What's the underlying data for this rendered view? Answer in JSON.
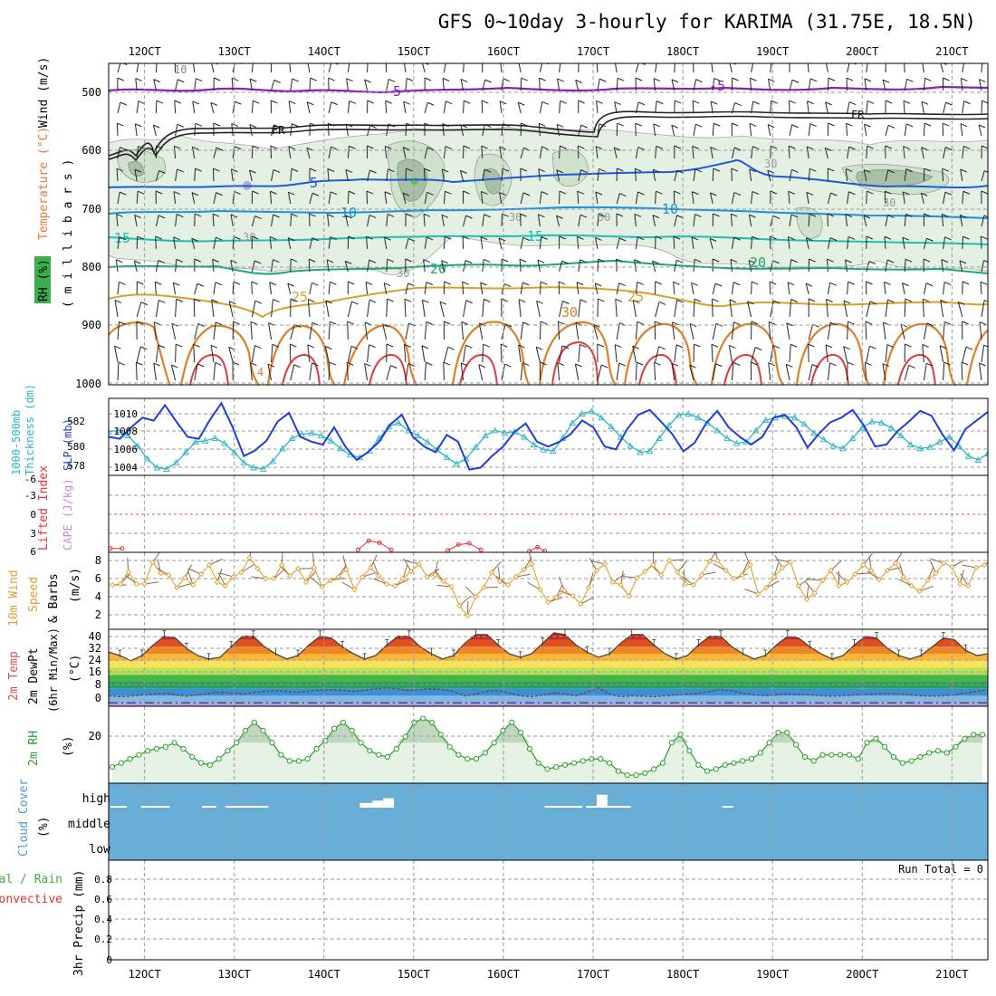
{
  "title": "GFS 0~10day 3-hourly for KARIMA (31.75E, 18.5N)",
  "colors": {
    "slp": "#1e3fd6",
    "thickness": "#2ab7c2",
    "lifted": "#e83030",
    "cape": "#c58ad6",
    "wind10m": "#e0a030",
    "barb": "#8a6a4a",
    "rh2m_line": "#2aa02a",
    "rh2m_fill": "#e6f2e4",
    "cloud_bg": "#69aed6",
    "cloud_fill": "#ffffff",
    "precip_total": "#3cb043",
    "precip_conv": "#e83030"
  },
  "panels": {
    "upper_air": {
      "axis_labels": [
        "RH (%)",
        "Temperature (°C)",
        "Wind (m/s)",
        "( m i l l i b a r s )"
      ],
      "pressure_ticks": [
        "500",
        "600",
        "700",
        "800",
        "900",
        "1000"
      ],
      "contour_labels": [
        "10",
        "5",
        "-5",
        "FR",
        "FR",
        "5",
        "10",
        "10",
        "15",
        "15",
        "20",
        "20",
        "25",
        "25",
        "30",
        "30",
        "30",
        "30",
        "30",
        "4",
        "30",
        "30"
      ]
    },
    "slp": {
      "axis_labels": [
        "1000-500mb",
        "Thickness (dm)",
        "SLP (mb)"
      ],
      "thickness_ticks": [
        "582",
        "580",
        "578"
      ],
      "slp_ticks": [
        "1010",
        "1008",
        "1006",
        "1004"
      ]
    },
    "stability": {
      "axis_labels": [
        "Lifted Index",
        "CAPE (J/kg)"
      ],
      "li_ticks": [
        "-6",
        "-3",
        "0",
        "3",
        "6"
      ]
    },
    "wind10m": {
      "axis_labels": [
        "10m Wind",
        "Speed",
        "& Barbs",
        "(m/s)"
      ],
      "ticks": [
        "8",
        "6",
        "4",
        "2"
      ]
    },
    "temp2m": {
      "axis_labels": [
        "2m Temp",
        "2m DewPt",
        "(6hr Min/Max)",
        "(°C)"
      ],
      "ticks": [
        "40",
        "32",
        "24",
        "16",
        "8",
        "0"
      ]
    },
    "rh2m": {
      "axis_labels": [
        "2m RH",
        "(%)"
      ],
      "ticks": [
        "20"
      ]
    },
    "cloud": {
      "axis_labels": [
        "Cloud Cover",
        "(%)"
      ],
      "levels": [
        "high",
        "middle",
        "low"
      ]
    },
    "precip": {
      "axis_labels": [
        "Total / Rain",
        "Convective",
        "3hr Precip (mm)"
      ],
      "ticks": [
        "0.8",
        "0.6",
        "0.4",
        "0.2",
        "0"
      ],
      "run_total": "Run Total = 0"
    }
  },
  "chart_data": {
    "type": "line",
    "date_labels": [
      "12OCT",
      "13OCT",
      "14OCT",
      "15OCT",
      "16OCT",
      "17OCT",
      "18OCT",
      "19OCT",
      "20OCT",
      "21OCT"
    ],
    "x_range_days": [
      11.6,
      21.4
    ],
    "slp": {
      "ylim": [
        1003,
        1011
      ],
      "values": [
        1007,
        1006.8,
        1008,
        1009,
        1008.7,
        1010.3,
        1008.6,
        1007,
        1006.8,
        1008.8,
        1010.5,
        1008,
        1005,
        1005.6,
        1006.6,
        1008.6,
        1009.5,
        1007,
        1006.5,
        1006.2,
        1008,
        1006,
        1004.6,
        1005.4,
        1006.5,
        1008.3,
        1009.3,
        1007,
        1006,
        1005.4,
        1007.2,
        1006.5,
        1003.6,
        1003.8,
        1005,
        1006,
        1007.5,
        1008.4,
        1006.5,
        1006,
        1006.5,
        1007.3,
        1008.7,
        1008,
        1006,
        1005.7,
        1007.8,
        1009.3,
        1009.8,
        1008.6,
        1007.3,
        1005.5,
        1006.4,
        1008.4,
        1009.7,
        1008,
        1007,
        1006.2,
        1007,
        1009,
        1009.3,
        1008,
        1005.9,
        1007.3,
        1008.5,
        1009,
        1009.8,
        1008.2,
        1006,
        1006.2,
        1007.6,
        1008.6,
        1009.7,
        1009.2,
        1007.2,
        1005.6,
        1007.8,
        1008.7,
        1009.6
      ]
    },
    "thickness": {
      "ylim": [
        577.5,
        583.5
      ],
      "values": [
        580.9,
        581.0,
        580.6,
        579.8,
        578.8,
        578.1,
        578.0,
        578.5,
        579.3,
        580.1,
        580.2,
        580.4,
        580.0,
        579.3,
        578.5,
        578.1,
        578.0,
        578.6,
        579.6,
        580.4,
        580.7,
        580.8,
        580.6,
        580.2,
        579.6,
        579.1,
        578.9,
        579.4,
        580.4,
        581.3,
        581.6,
        581.0,
        580.6,
        580.1,
        579.5,
        578.9,
        578.4,
        578.8,
        579.7,
        580.6,
        581.0,
        580.8,
        580.9,
        580.5,
        579.9,
        579.5,
        579.4,
        580.4,
        581.6,
        582.3,
        582.5,
        582.0,
        581.3,
        580.5,
        579.8,
        579.3,
        579.4,
        580.4,
        581.4,
        582.2,
        582.3,
        582.0,
        581.6,
        581.0,
        580.4,
        580.0,
        580.1,
        581.0,
        581.8,
        582.0,
        582.1,
        582.0,
        581.5,
        580.8,
        580.3,
        579.8,
        579.6,
        580.4,
        581.2,
        581.7,
        581.6,
        581.2,
        580.6,
        579.9,
        579.6,
        579.7,
        580.1,
        580.5,
        579.8,
        579.0,
        578.7,
        579.2
      ]
    },
    "lifted_index": {
      "ylim": [
        -6,
        6
      ],
      "visible_segments": [
        {
          "x_days": [
            11.62,
            11.75
          ],
          "values": [
            5.4,
            5.4
          ]
        },
        {
          "x_days": [
            14.38,
            14.5,
            14.62,
            14.75
          ],
          "values": [
            5.6,
            4.2,
            4.5,
            5.6
          ]
        },
        {
          "x_days": [
            15.38,
            15.5,
            15.62,
            15.75
          ],
          "values": [
            5.7,
            4.8,
            4.6,
            5.6
          ]
        },
        {
          "x_days": [
            16.29,
            16.38,
            16.46
          ],
          "values": [
            5.8,
            5.2,
            5.8
          ]
        }
      ]
    },
    "wind10m": {
      "ylim": [
        0,
        8.5
      ],
      "values": [
        4.9,
        5.0,
        6.3,
        5.0,
        5.0,
        7.4,
        6.2,
        6.0,
        4.6,
        5.7,
        4.9,
        6.1,
        7.1,
        5.2,
        4.8,
        5.8,
        6.3,
        7.9,
        6.7,
        5.6,
        5.6,
        7.1,
        5.9,
        6.7,
        5.2,
        6.8,
        4.7,
        5.4,
        5.8,
        6.6,
        4.4,
        5.8,
        6.8,
        5.9,
        5.0,
        4.8,
        5.6,
        6.4,
        7.2,
        5.8,
        6.0,
        5.3,
        4.7,
        2.6,
        1.5,
        3.6,
        4.6,
        6.3,
        5.3,
        4.9,
        5.8,
        6.6,
        7.2,
        4.4,
        3.0,
        3.5,
        4.3,
        3.7,
        2.8,
        4.6,
        6.5,
        7.2,
        5.2,
        4.9,
        3.7,
        5.7,
        6.4,
        7.1,
        6.0,
        7.6,
        6.3,
        5.0,
        4.9,
        6.0,
        7.5,
        7.6,
        6.5,
        5.6,
        6.0,
        7.1,
        3.9,
        4.6,
        5.8,
        6.8,
        7.4,
        4.8,
        3.3,
        4.0,
        5.4,
        6.5,
        4.8,
        5.2,
        6.1,
        7.1,
        6.5,
        5.5,
        6.5,
        7.3,
        5.8,
        4.8,
        4.2,
        5.4,
        6.2,
        7.3,
        6.9,
        5.0,
        4.8,
        6.8,
        7.1
      ]
    },
    "temp2m": {
      "ylim": [
        -2,
        42
      ],
      "temp_values": [
        29,
        27,
        24,
        27,
        33,
        38,
        37,
        31,
        27,
        25,
        26,
        32,
        38,
        38,
        32,
        28,
        25,
        27,
        33,
        38,
        37,
        32,
        28,
        25,
        27,
        33,
        38,
        38,
        32,
        28,
        25,
        27,
        34,
        39,
        39,
        33,
        28,
        26,
        28,
        34,
        40,
        39,
        33,
        29,
        26,
        28,
        34,
        39,
        39,
        33,
        28,
        25,
        27,
        33,
        38,
        38,
        32,
        28,
        25,
        27,
        33,
        38,
        37,
        32,
        28,
        25,
        27,
        33,
        38,
        37,
        31,
        27,
        25,
        27,
        32,
        37,
        36,
        30,
        27,
        28
      ],
      "dewpt_values": [
        4.0,
        3.5,
        3.8,
        4.5,
        5.0,
        5.5,
        4.5,
        3.8,
        4.5,
        5.2,
        6.0,
        5.5,
        5.0,
        5.8,
        6.5,
        7.0,
        6.5,
        6.0,
        6.8,
        7.2,
        7.5,
        7.0,
        6.5,
        7.0,
        8.0,
        8.5,
        7.8,
        7.0,
        7.5,
        8.0,
        7.5,
        6.5,
        4.0,
        5.0,
        6.5,
        7.0,
        5.5,
        4.0,
        3.5,
        4.5,
        5.5,
        5.0,
        4.0,
        6.0,
        8.5,
        5.0,
        3.5,
        4.0,
        3.8,
        3.5,
        4.0,
        4.5,
        5.0,
        5.5,
        6.5,
        7.5,
        6.8,
        5.5,
        4.5,
        4.0,
        4.5,
        5.0,
        4.8,
        4.5,
        4.0,
        3.8,
        4.0,
        4.5,
        4.8,
        5.0,
        5.5,
        5.0,
        4.5,
        4.0,
        3.8,
        4.0,
        4.5,
        5.5,
        6.5,
        7.5
      ]
    },
    "rh2m": {
      "ylim": [
        0,
        38
      ],
      "values": [
        8,
        10,
        12,
        14,
        16,
        17,
        18,
        20,
        17,
        13,
        10,
        9,
        12,
        16,
        20,
        26,
        30,
        26,
        20,
        14,
        11,
        11,
        12,
        17,
        21,
        27,
        30,
        26,
        20,
        16,
        14,
        13,
        17,
        23,
        30,
        32,
        30,
        24,
        18,
        14,
        12,
        12,
        15,
        20,
        26,
        30,
        25,
        17,
        10,
        7,
        8,
        9,
        10,
        11,
        12,
        12,
        10,
        6,
        4,
        4,
        5,
        7,
        10,
        20,
        24,
        16,
        9,
        6,
        7,
        9,
        10,
        11,
        12,
        15,
        20,
        25,
        25,
        19,
        13,
        11,
        14,
        14,
        14,
        14,
        12,
        20,
        22,
        18,
        13,
        10,
        11,
        13,
        15,
        16,
        15,
        18,
        22,
        24,
        24
      ]
    },
    "cloud_high": {
      "percent_blocks": [
        {
          "x_days": [
            11.62,
            11.8
          ],
          "percent": 3
        },
        {
          "x_days": [
            11.96,
            12.28
          ],
          "percent": 3
        },
        {
          "x_days": [
            12.64,
            12.8
          ],
          "percent": 3
        },
        {
          "x_days": [
            12.9,
            13.0
          ],
          "percent": 3
        },
        {
          "x_days": [
            13.0,
            13.38
          ],
          "percent": 5
        },
        {
          "x_days": [
            14.4,
            14.54
          ],
          "percent": 20
        },
        {
          "x_days": [
            14.54,
            14.66
          ],
          "percent": 30
        },
        {
          "x_days": [
            14.66,
            14.78
          ],
          "percent": 40
        },
        {
          "x_days": [
            16.46,
            16.88
          ],
          "percent": 3
        },
        {
          "x_days": [
            16.92,
            17.04
          ],
          "percent": 3
        },
        {
          "x_days": [
            17.04,
            17.16
          ],
          "percent": 55
        },
        {
          "x_days": [
            17.16,
            17.42
          ],
          "percent": 3
        },
        {
          "x_days": [
            18.44,
            18.56
          ],
          "percent": 3
        }
      ]
    },
    "precip": {
      "ylim": [
        0,
        0.9
      ],
      "values": [],
      "run_total": 0
    }
  }
}
